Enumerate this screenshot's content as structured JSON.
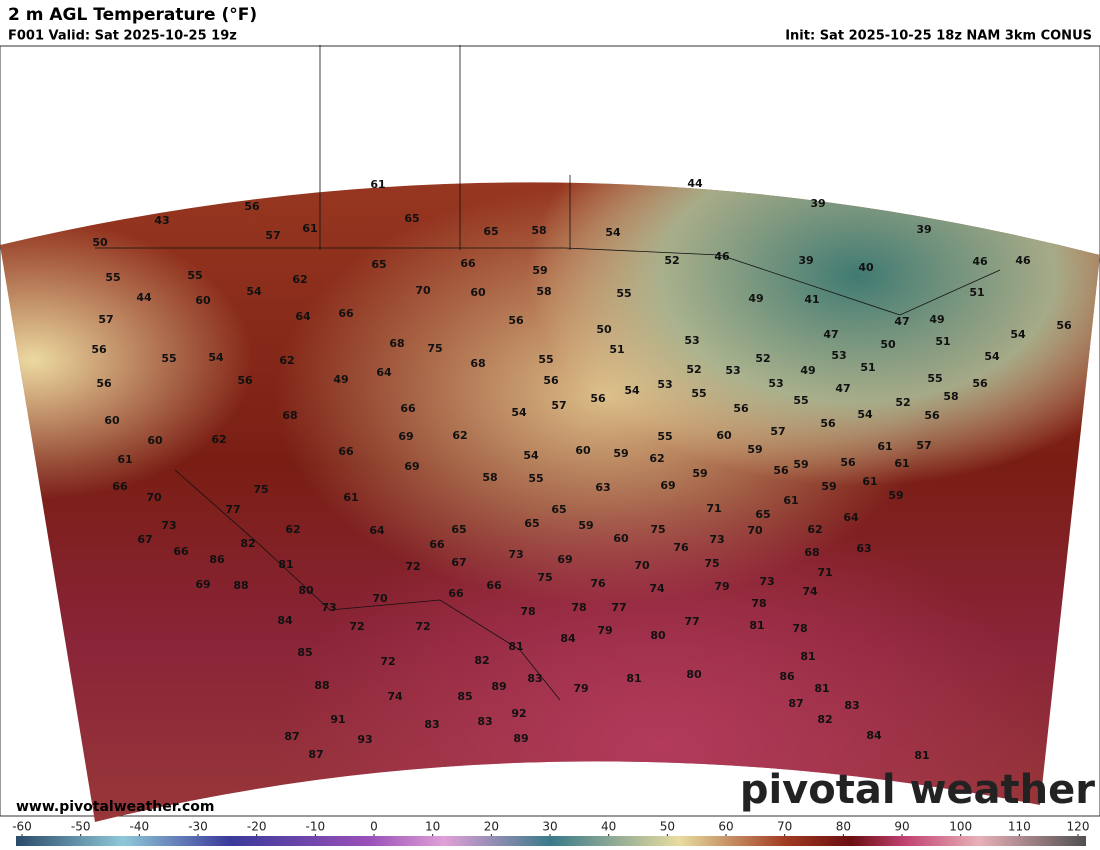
{
  "header": {
    "title": "2 m AGL Temperature (°F)",
    "subtitle": "F001 Valid: Sat 2025-10-25 19z",
    "init": "Init: Sat 2025-10-25 18z NAM 3km CONUS"
  },
  "map": {
    "temperatures": [
      61,
      56,
      65,
      43,
      57,
      61,
      65,
      58,
      54,
      44,
      39,
      39,
      50,
      66,
      65,
      59,
      52,
      46,
      39,
      40,
      46,
      46,
      55,
      55,
      62,
      70,
      60,
      58,
      55,
      49,
      41,
      51,
      44,
      60,
      54,
      64,
      66,
      57,
      56,
      50,
      47,
      49,
      54,
      56,
      56,
      55,
      54,
      62,
      68,
      75,
      68,
      55,
      51,
      53,
      47,
      50,
      51,
      52,
      53,
      54,
      56,
      56,
      49,
      64,
      56,
      52,
      53,
      51,
      53,
      49,
      55,
      56,
      53,
      54,
      56,
      55,
      55,
      47,
      52,
      58,
      60,
      68,
      66,
      57,
      54,
      56,
      54,
      56,
      60,
      62,
      69,
      62,
      55,
      60,
      57,
      56,
      61,
      57,
      61,
      66,
      69,
      54,
      60,
      59,
      62,
      59,
      56,
      59,
      56,
      61,
      66,
      70,
      75,
      58,
      55,
      63,
      59,
      69,
      61,
      59,
      61,
      59,
      77,
      61,
      65,
      71,
      65,
      64,
      73,
      62,
      64,
      65,
      65,
      59,
      75,
      62,
      67,
      82,
      66,
      60,
      76,
      73,
      70,
      68,
      63,
      66,
      86,
      73,
      69,
      81,
      72,
      67,
      75,
      71,
      69,
      88,
      66,
      75,
      76,
      70,
      74,
      79,
      73,
      80,
      66,
      74,
      73,
      70,
      78,
      78,
      77,
      78,
      84,
      72,
      72,
      79,
      80,
      77,
      81,
      78,
      85,
      82,
      81,
      84,
      81,
      72,
      88,
      89,
      83,
      79,
      81,
      80,
      86,
      81,
      74,
      85,
      87,
      83,
      91,
      83,
      83,
      92,
      82,
      87,
      93,
      89,
      84,
      87,
      81
    ]
  },
  "colorbar": {
    "ticks": [
      -60,
      -50,
      -40,
      -30,
      -20,
      -10,
      0,
      10,
      20,
      30,
      40,
      50,
      60,
      70,
      80,
      90,
      100,
      110,
      120
    ]
  },
  "footer": {
    "website": "www.pivotalweather.com",
    "watermark": "pivotal weather"
  }
}
